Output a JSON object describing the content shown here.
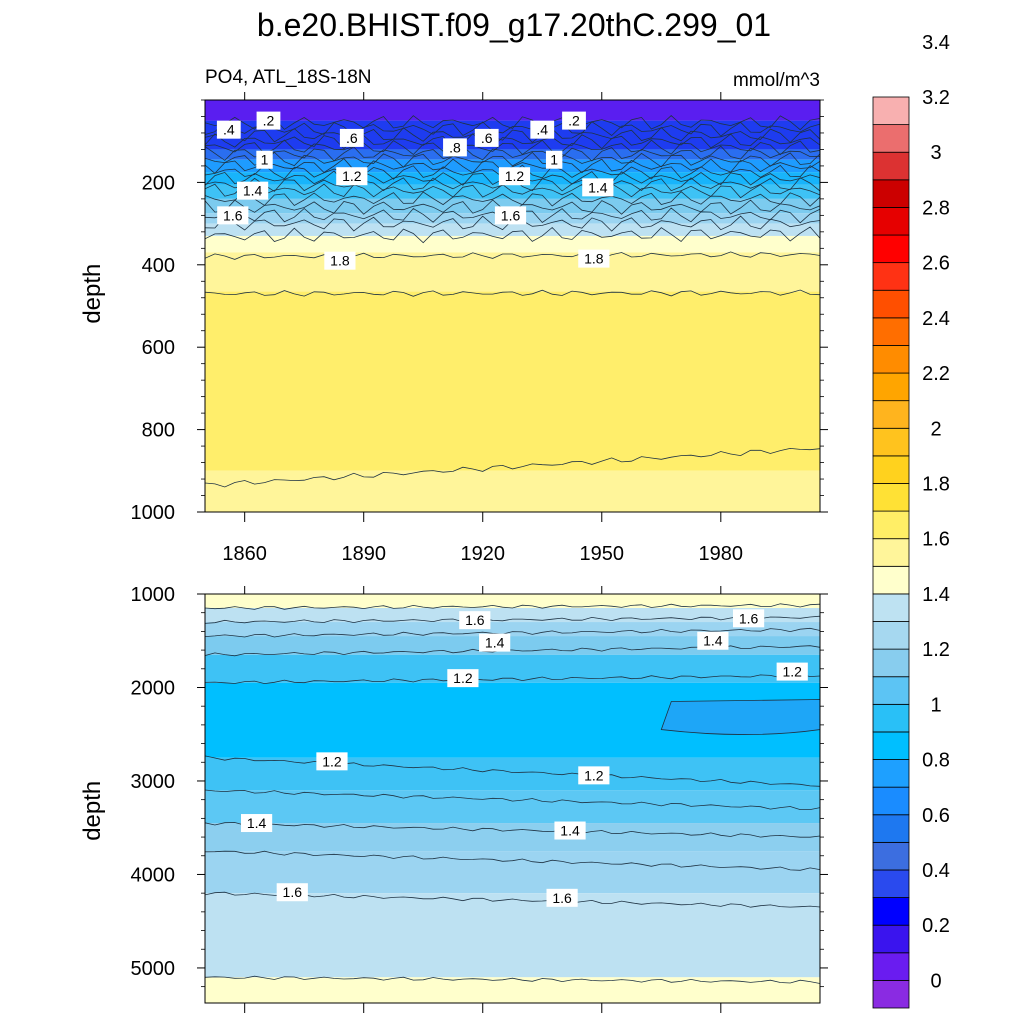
{
  "figure": {
    "title": "b.e20.BHIST.f09_g17.20thC.299_01",
    "subtitle_left": "PO4, ATL_18S-18N",
    "subtitle_right": "mmol/m^3"
  },
  "colorbar": {
    "levels": [
      "0",
      "0.2",
      "0.4",
      "0.6",
      "0.8",
      "1",
      "1.2",
      "1.4",
      "1.6",
      "1.8",
      "2",
      "2.2",
      "2.4",
      "2.6",
      "2.8",
      "3",
      "3.2",
      "3.4"
    ],
    "colors": [
      "#8a2be2",
      "#6a1cf0",
      "#3a14ee",
      "#0000ff",
      "#2a4aee",
      "#3c6ee0",
      "#1e78f0",
      "#1a8cff",
      "#1ea0ff",
      "#00bfff",
      "#29c0f7",
      "#5cc4f4",
      "#88cdee",
      "#a6d8f0",
      "#bee2f2",
      "#ffffcc",
      "#fff59a",
      "#ffee66",
      "#ffe135",
      "#ffd21e",
      "#ffc31e",
      "#ffb41e",
      "#ffa500",
      "#ff8c00",
      "#ff6e00",
      "#ff4f00",
      "#ff3214",
      "#ff0000",
      "#e60000",
      "#cc0000",
      "#dc3232",
      "#eb6e6e",
      "#f8b0b0"
    ]
  },
  "chart_data": [
    {
      "type": "contour",
      "name": "upper-panel",
      "x": {
        "ticks": [
          1860,
          1890,
          1920,
          1950,
          1980
        ],
        "range": [
          1850,
          2005
        ]
      },
      "ylabel": "depth",
      "y": {
        "ticks": [
          200,
          400,
          600,
          800,
          1000
        ],
        "range": [
          0,
          1000
        ],
        "inverted": true
      },
      "bands": [
        {
          "from": 0,
          "to": 50,
          "color": "#5a1ef0"
        },
        {
          "from": 50,
          "to": 120,
          "color": "#1e3cf0"
        },
        {
          "from": 120,
          "to": 145,
          "color": "#2a6ef0"
        },
        {
          "from": 145,
          "to": 175,
          "color": "#1e9cff"
        },
        {
          "from": 175,
          "to": 205,
          "color": "#18b4fb"
        },
        {
          "from": 205,
          "to": 240,
          "color": "#3ec2f5"
        },
        {
          "from": 240,
          "to": 275,
          "color": "#7ccbef"
        },
        {
          "from": 275,
          "to": 300,
          "color": "#9bd4f1"
        },
        {
          "from": 300,
          "to": 330,
          "color": "#bde1f2"
        },
        {
          "from": 330,
          "to": 370,
          "color": "#ffffcc"
        },
        {
          "from": 370,
          "to": 465,
          "color": "#fff59a"
        },
        {
          "from": 465,
          "to": 900,
          "color": "#ffee6b"
        },
        {
          "from": 900,
          "to": 1000,
          "color": "#fff59a"
        }
      ],
      "contours": [
        {
          "depths": [
            55,
            55
          ]
        },
        {
          "depths": [
            70,
            70
          ]
        },
        {
          "depths": [
            85,
            85
          ]
        },
        {
          "depths": [
            100,
            100
          ]
        },
        {
          "depths": [
            115,
            115
          ]
        },
        {
          "depths": [
            130,
            130
          ]
        },
        {
          "depths": [
            145,
            145
          ]
        },
        {
          "depths": [
            160,
            160
          ]
        },
        {
          "depths": [
            175,
            175
          ]
        },
        {
          "depths": [
            190,
            190
          ]
        },
        {
          "depths": [
            205,
            205
          ]
        },
        {
          "depths": [
            220,
            220
          ]
        },
        {
          "depths": [
            240,
            240
          ]
        },
        {
          "depths": [
            260,
            260
          ]
        },
        {
          "depths": [
            280,
            280
          ]
        },
        {
          "depths": [
            300,
            300
          ]
        },
        {
          "depths": [
            330,
            325
          ]
        },
        {
          "depths": [
            380,
            375
          ]
        },
        {
          "depths": [
            470,
            468
          ]
        },
        {
          "depths": [
            935,
            845
          ]
        }
      ],
      "labels": [
        {
          "text": ".4",
          "year": 1856,
          "depth": 72
        },
        {
          "text": ".2",
          "year": 1866,
          "depth": 50
        },
        {
          "text": ".6",
          "year": 1887,
          "depth": 92
        },
        {
          "text": ".8",
          "year": 1913,
          "depth": 115
        },
        {
          "text": ".6",
          "year": 1921,
          "depth": 92
        },
        {
          "text": ".4",
          "year": 1935,
          "depth": 72
        },
        {
          "text": ".2",
          "year": 1943,
          "depth": 50
        },
        {
          "text": "1",
          "year": 1865,
          "depth": 145
        },
        {
          "text": "1",
          "year": 1938,
          "depth": 145
        },
        {
          "text": "1.2",
          "year": 1887,
          "depth": 185
        },
        {
          "text": "1.2",
          "year": 1928,
          "depth": 185
        },
        {
          "text": "1.4",
          "year": 1862,
          "depth": 220
        },
        {
          "text": "1.4",
          "year": 1949,
          "depth": 212
        },
        {
          "text": "1.6",
          "year": 1857,
          "depth": 280
        },
        {
          "text": "1.6",
          "year": 1927,
          "depth": 280
        },
        {
          "text": "1.8",
          "year": 1884,
          "depth": 390
        },
        {
          "text": "1.8",
          "year": 1948,
          "depth": 385
        }
      ]
    },
    {
      "type": "contour",
      "name": "lower-panel",
      "x": {
        "ticks": [
          1860,
          1890,
          1920,
          1950,
          1980
        ],
        "range": [
          1850,
          2005
        ]
      },
      "ylabel": "depth",
      "y": {
        "ticks": [
          1000,
          2000,
          3000,
          4000,
          5000
        ],
        "range": [
          1000,
          5375
        ],
        "inverted": true
      },
      "bands": [
        {
          "from": 1000,
          "to": 1150,
          "color": "#ffffcc"
        },
        {
          "from": 1150,
          "to": 1300,
          "color": "#bde1f2"
        },
        {
          "from": 1300,
          "to": 1450,
          "color": "#9bd4f1"
        },
        {
          "from": 1450,
          "to": 1650,
          "color": "#7ccbef"
        },
        {
          "from": 1650,
          "to": 1950,
          "color": "#3ec2f5"
        },
        {
          "from": 1950,
          "to": 2750,
          "color": "#00bfff"
        },
        {
          "from": 2750,
          "to": 3100,
          "color": "#3ec2f5"
        },
        {
          "from": 3100,
          "to": 3450,
          "color": "#5cc8f4"
        },
        {
          "from": 3450,
          "to": 3750,
          "color": "#8ccfef"
        },
        {
          "from": 3750,
          "to": 4200,
          "color": "#9bd4f1"
        },
        {
          "from": 4200,
          "to": 5100,
          "color": "#bde1f2"
        },
        {
          "from": 5100,
          "to": 5375,
          "color": "#ffffcc"
        }
      ],
      "contours": [
        {
          "depths": [
            1150,
            1120
          ]
        },
        {
          "depths": [
            1300,
            1250
          ]
        },
        {
          "depths": [
            1450,
            1380
          ]
        },
        {
          "depths": [
            1650,
            1560
          ]
        },
        {
          "depths": [
            1950,
            1870
          ]
        },
        {
          "depths": [
            2750,
            3050
          ]
        },
        {
          "depths": [
            3100,
            3300
          ]
        },
        {
          "depths": [
            3450,
            3600
          ]
        },
        {
          "depths": [
            3750,
            3950
          ]
        },
        {
          "depths": [
            4200,
            4350
          ]
        },
        {
          "depths": [
            5100,
            5150
          ]
        }
      ],
      "pool": {
        "year_start": 1965,
        "depth_top": 2150,
        "depth_bottom": 2450
      },
      "labels": [
        {
          "text": "1.6",
          "year": 1918,
          "depth": 1280
        },
        {
          "text": "1.6",
          "year": 1987,
          "depth": 1260
        },
        {
          "text": "1.4",
          "year": 1923,
          "depth": 1520
        },
        {
          "text": "1.4",
          "year": 1978,
          "depth": 1500
        },
        {
          "text": "1.2",
          "year": 1915,
          "depth": 1900
        },
        {
          "text": "1.2",
          "year": 1998,
          "depth": 1830
        },
        {
          "text": "1.2",
          "year": 1882,
          "depth": 2790
        },
        {
          "text": "1.2",
          "year": 1948,
          "depth": 2940
        },
        {
          "text": "1.4",
          "year": 1863,
          "depth": 3450
        },
        {
          "text": "1.4",
          "year": 1942,
          "depth": 3530
        },
        {
          "text": "1.6",
          "year": 1872,
          "depth": 4190
        },
        {
          "text": "1.6",
          "year": 1940,
          "depth": 4250
        }
      ]
    }
  ]
}
